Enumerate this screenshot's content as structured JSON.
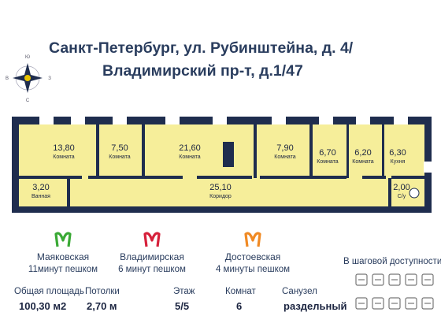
{
  "header": {
    "title_lines": [
      "Санкт-Петербург, ул. Рубинштейна, д. 4/",
      "Владимирский пр-т, д.1/47"
    ]
  },
  "compass": {
    "north": "С",
    "south": "Ю",
    "east": "В",
    "west": "З"
  },
  "rooms": [
    {
      "area": "13,80",
      "label": "Комната"
    },
    {
      "area": "7,50",
      "label": "Комната"
    },
    {
      "area": "21,60",
      "label": "Комната"
    },
    {
      "area": "7,90",
      "label": "Комната"
    },
    {
      "area": "6,70",
      "label": "Комната"
    },
    {
      "area": "6,20",
      "label": "Комната"
    },
    {
      "area": "6,30",
      "label": "Кухня"
    },
    {
      "area": "3,20",
      "label": "Ванная"
    },
    {
      "area": "25,10",
      "label": "Коридор"
    },
    {
      "area": "2,00",
      "label": "С/у"
    }
  ],
  "metro": [
    {
      "station": "Маяковская",
      "walk": "11минут пешком",
      "color": "#3aa935"
    },
    {
      "station": "Владимирская",
      "walk": "6 минут пешком",
      "color": "#d6213b"
    },
    {
      "station": "Достоевская",
      "walk": "4 минуты пешком",
      "color": "#f08a24"
    }
  ],
  "nearby": {
    "title": "В шаговой доступности"
  },
  "stats": [
    {
      "label": "Общая площадь",
      "value": "100,30 м2"
    },
    {
      "label": "Потолки",
      "value": "2,70 м"
    },
    {
      "label": "Этаж",
      "value": "5/5"
    },
    {
      "label": "Комнат",
      "value": "6"
    },
    {
      "label": "Санузел",
      "value": "раздельный"
    }
  ]
}
